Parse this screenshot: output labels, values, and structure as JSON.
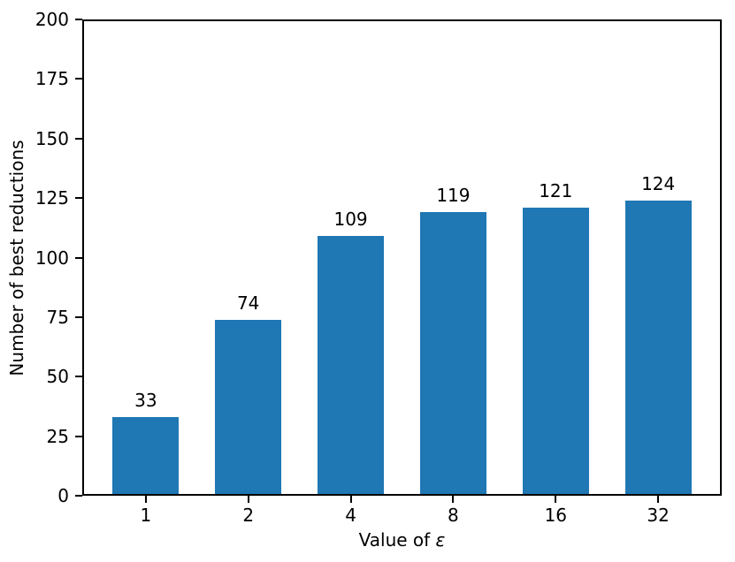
{
  "chart_data": {
    "type": "bar",
    "categories": [
      "1",
      "2",
      "4",
      "8",
      "16",
      "32"
    ],
    "values": [
      33,
      74,
      109,
      119,
      121,
      124
    ],
    "bar_labels": [
      "33",
      "74",
      "109",
      "119",
      "121",
      "124"
    ],
    "title": "",
    "xlabel": "Value of ε",
    "xlabel_parts": {
      "prefix": "Value of ",
      "symbol": "ε"
    },
    "ylabel": "Number of best reductions",
    "ylim": [
      0,
      200
    ],
    "yticks": [
      0,
      25,
      50,
      75,
      100,
      125,
      150,
      175,
      200
    ],
    "xlim": [
      -0.62,
      5.62
    ],
    "bar_width": 0.65,
    "bar_color": "#1f77b4",
    "axis_color": "#000000",
    "text_color": "#000000",
    "background_color": "#ffffff",
    "grid": false,
    "legend": null
  }
}
